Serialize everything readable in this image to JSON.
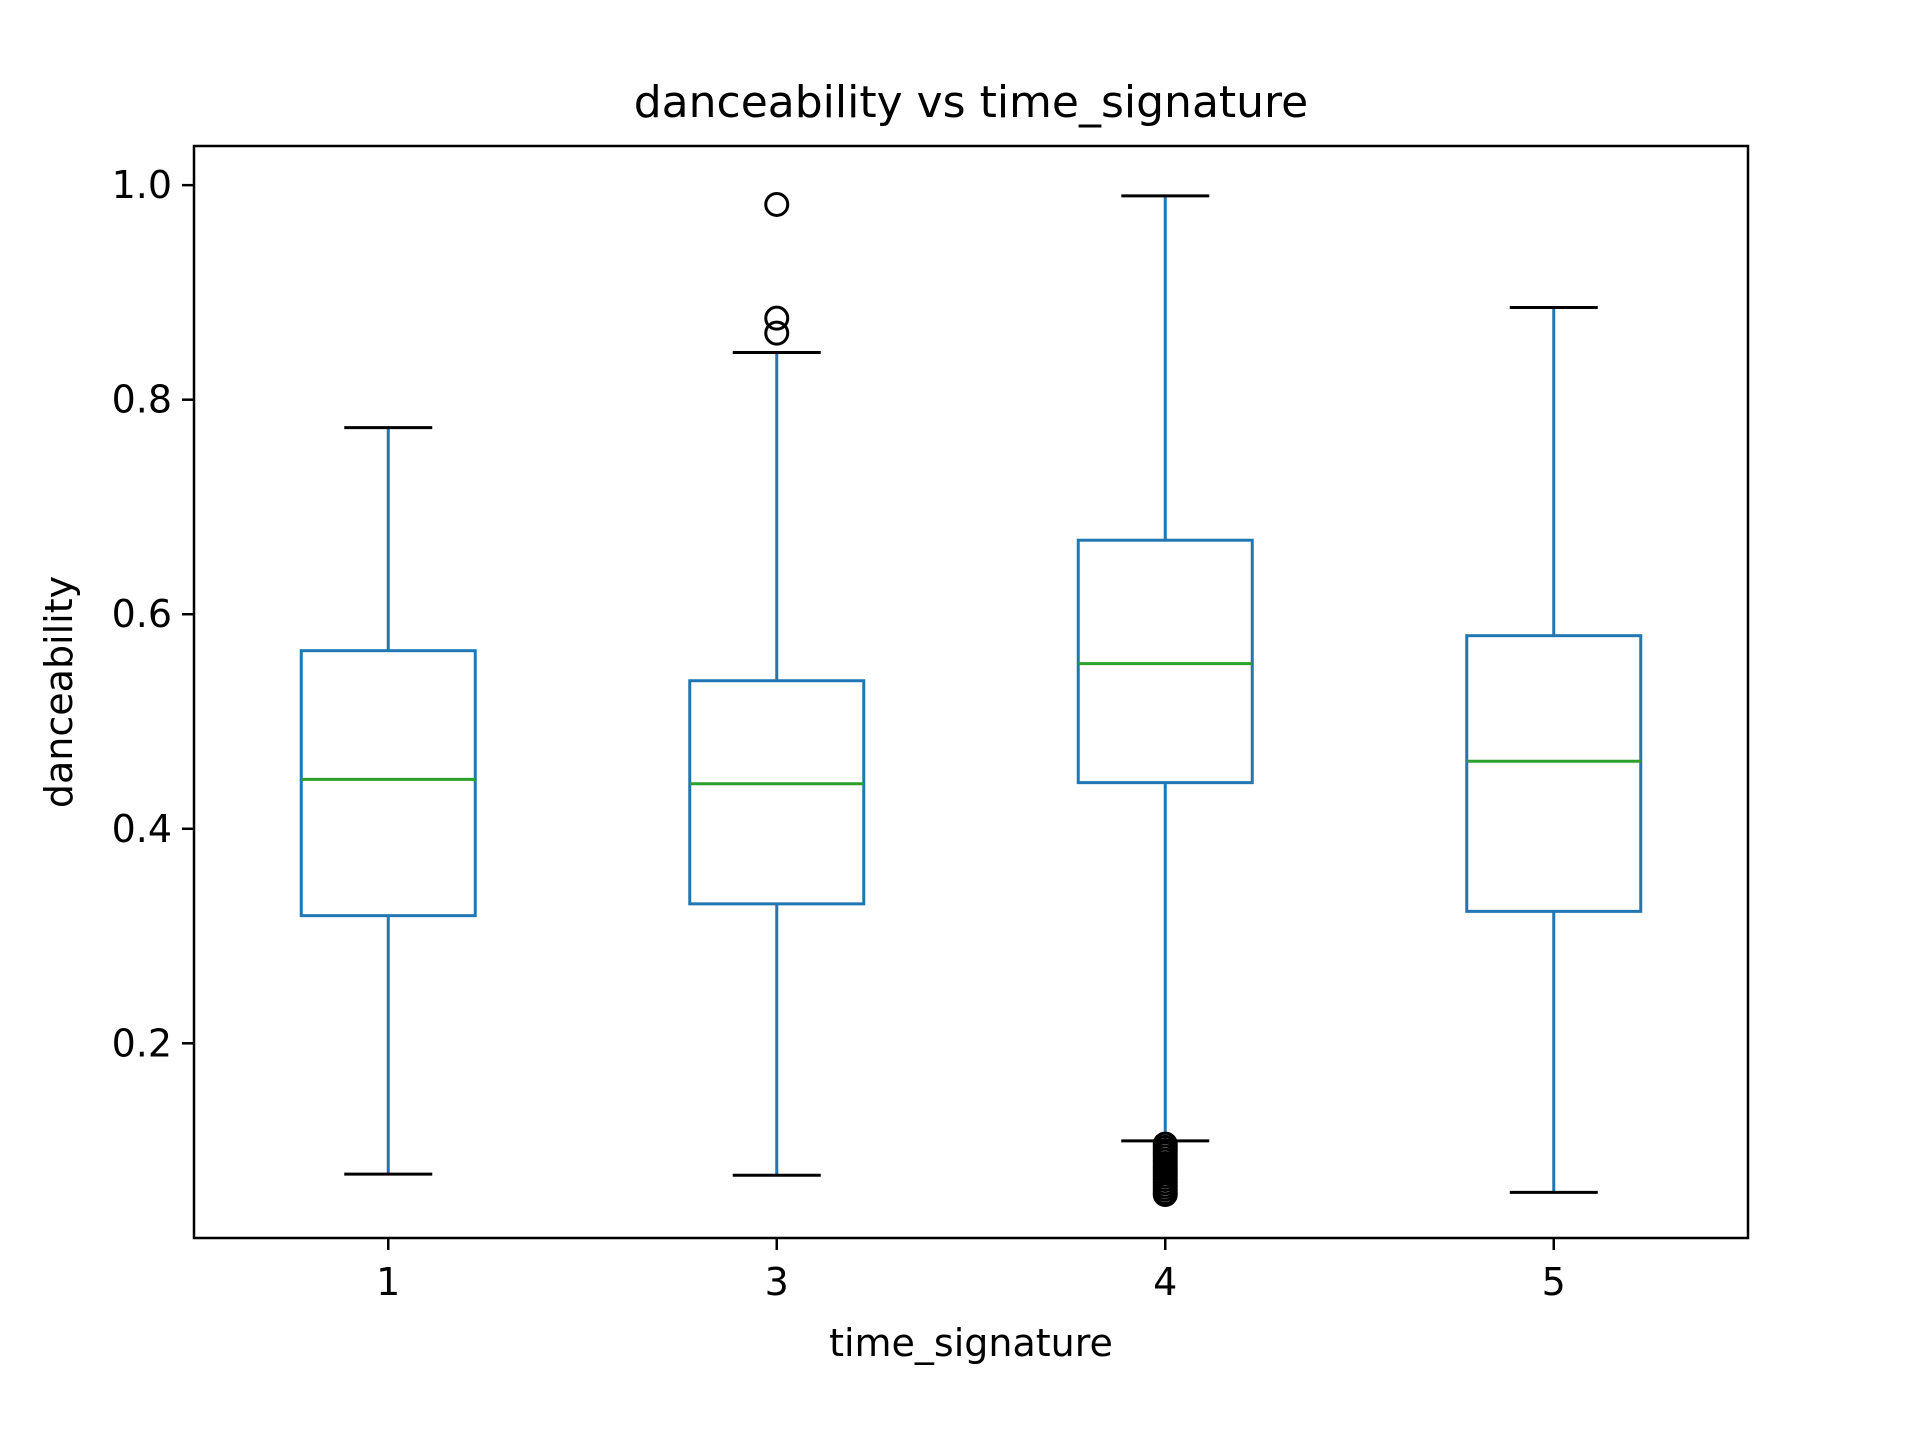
{
  "chart_data": {
    "type": "box",
    "title": "danceability vs time_signature",
    "xlabel": "time_signature",
    "ylabel": "danceability",
    "categories": [
      "1",
      "3",
      "4",
      "5"
    ],
    "ylim": [
      0.0185,
      1.0365
    ],
    "yticks": [
      0.2,
      0.4,
      0.6,
      0.8,
      1.0
    ],
    "ytick_labels": [
      "0.2",
      "0.4",
      "0.6",
      "0.8",
      "1.0"
    ],
    "grid": false,
    "colors": {
      "box": "#1f77b4",
      "median": "#2ca02c",
      "cap": "#000000",
      "flier": "#000000"
    },
    "boxes": [
      {
        "category": "1",
        "whisker_low": 0.078,
        "q1": 0.319,
        "median": 0.446,
        "q3": 0.566,
        "whisker_high": 0.774,
        "outliers": []
      },
      {
        "category": "3",
        "whisker_low": 0.077,
        "q1": 0.33,
        "median": 0.442,
        "q3": 0.538,
        "whisker_high": 0.844,
        "outliers": [
          0.982,
          0.876,
          0.862
        ]
      },
      {
        "category": "4",
        "whisker_low": 0.109,
        "q1": 0.443,
        "median": 0.554,
        "q3": 0.669,
        "whisker_high": 0.99,
        "outliers": [
          0.106,
          0.103,
          0.1,
          0.097,
          0.094,
          0.091,
          0.088,
          0.085,
          0.082,
          0.079,
          0.076,
          0.073,
          0.07,
          0.067,
          0.064,
          0.061,
          0.059
        ]
      },
      {
        "category": "5",
        "whisker_low": 0.061,
        "q1": 0.323,
        "median": 0.463,
        "q3": 0.58,
        "whisker_high": 0.886,
        "outliers": []
      }
    ]
  }
}
